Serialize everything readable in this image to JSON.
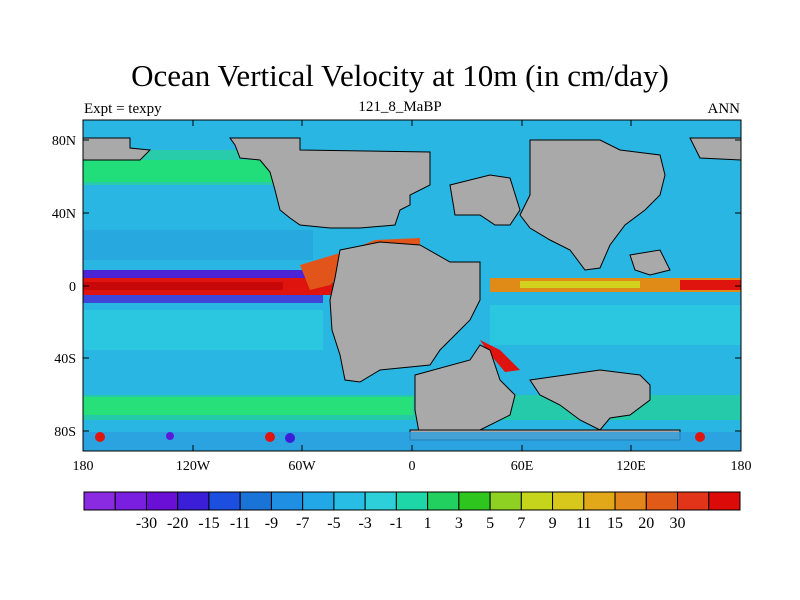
{
  "title": "Ocean Vertical Velocity at 10m (in cm/day)",
  "left_subtitle": "Expt = texpy",
  "center_subtitle": "121_8_MaBP",
  "right_subtitle": "ANN",
  "lat_ticks": [
    "80N",
    "40N",
    "0",
    "40S",
    "80S"
  ],
  "lon_ticks": [
    "180",
    "120W",
    "60W",
    "0",
    "60E",
    "120E",
    "180"
  ],
  "colorbar": {
    "colors": [
      "#8a2be2",
      "#7a1fe0",
      "#6a10d6",
      "#3a1ed8",
      "#1c4fe0",
      "#1a73d6",
      "#1e8fe3",
      "#22a8e6",
      "#27bde4",
      "#2dcfd8",
      "#1ed7a8",
      "#22d060",
      "#2ec51e",
      "#8fd122",
      "#c5d51c",
      "#d9c81c",
      "#e2a81a",
      "#e2851b",
      "#e25a18",
      "#e23418",
      "#dd0a0a"
    ],
    "labels": [
      "-30",
      "-20",
      "-15",
      "-11",
      "-9",
      "-7",
      "-5",
      "-3",
      "-1",
      "1",
      "3",
      "5",
      "7",
      "9",
      "11",
      "15",
      "20",
      "30"
    ]
  },
  "colors": {
    "land": "#a9a9a9",
    "ocean_background": "#2dbfe0",
    "upwelling": "#e0140f",
    "downwelling": "#5a1ad8",
    "subtropical": "#1ee08c"
  }
}
